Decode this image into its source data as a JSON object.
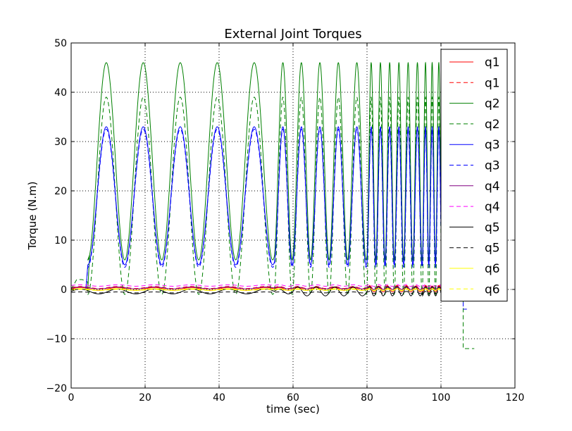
{
  "chart_data": {
    "type": "line",
    "title": "External Joint Torques",
    "xlabel": "time (sec)",
    "ylabel": "Torque (N.m)",
    "xlim": [
      0,
      120
    ],
    "ylim": [
      -20,
      50
    ],
    "xticks": [
      0,
      20,
      40,
      60,
      80,
      100,
      120
    ],
    "yticks": [
      -20,
      -10,
      0,
      10,
      20,
      30,
      40,
      50
    ],
    "xtick_labels": [
      "0",
      "20",
      "40",
      "60",
      "80",
      "100",
      "120"
    ],
    "ytick_labels": [
      "−20",
      "−10",
      "0",
      "10",
      "20",
      "30",
      "40",
      "50"
    ],
    "grid": true,
    "legend_position": "top-right",
    "series": [
      {
        "name": "q1",
        "color": "#ff0000",
        "style": "solid",
        "shape": "tiny_osc",
        "base": 0.1,
        "amp": 0.3,
        "burst_start": 80,
        "burst_amp": 0.6
      },
      {
        "name": "q1",
        "color": "#ff0000",
        "style": "dashed",
        "shape": "tiny_osc",
        "base": 0.4,
        "amp": 0.2,
        "burst_start": 80,
        "burst_amp": 0.4
      },
      {
        "name": "q2",
        "color": "#008000",
        "style": "solid",
        "shape": "osc",
        "start": 4.5,
        "peak": 46,
        "trough": 6,
        "end_x": 106,
        "early": [
          [
            0,
            0
          ],
          [
            4.5,
            0
          ],
          [
            5,
            7
          ]
        ]
      },
      {
        "name": "q2",
        "color": "#008000",
        "style": "dashed",
        "shape": "osc",
        "start": 4.5,
        "peak": 39,
        "trough": -1,
        "end_x": 106,
        "early": [
          [
            0,
            0
          ],
          [
            1.5,
            2
          ],
          [
            3,
            2
          ],
          [
            4.5,
            1.5
          ]
        ],
        "tail": [
          [
            106,
            -12
          ],
          [
            109,
            -12
          ]
        ]
      },
      {
        "name": "q3",
        "color": "#0000ff",
        "style": "solid",
        "shape": "osc",
        "start": 4.5,
        "peak": 33,
        "trough": 5,
        "end_x": 106,
        "early": [
          [
            0,
            0
          ],
          [
            4,
            0
          ],
          [
            4.5,
            5
          ]
        ]
      },
      {
        "name": "q3",
        "color": "#0000ff",
        "style": "dashed",
        "shape": "osc",
        "start": 4.5,
        "peak": 32.5,
        "trough": 4.5,
        "end_x": 106,
        "early": [
          [
            0,
            0
          ],
          [
            4,
            0
          ],
          [
            4.5,
            4.5
          ]
        ],
        "tail": [
          [
            106,
            -4
          ],
          [
            107,
            -4
          ]
        ]
      },
      {
        "name": "q4",
        "color": "#800080",
        "style": "solid",
        "shape": "tiny_osc",
        "base": 0.3,
        "amp": 0.2,
        "burst_start": 80,
        "burst_amp": 0.3
      },
      {
        "name": "q4",
        "color": "#ff00ff",
        "style": "dashed",
        "shape": "tiny_osc",
        "base": 0.8,
        "amp": 0.15,
        "burst_start": 80,
        "burst_amp": 0.2
      },
      {
        "name": "q5",
        "color": "#000000",
        "style": "solid",
        "shape": "tiny_osc",
        "base": -0.4,
        "amp": 0.5,
        "burst_start": 60,
        "burst_amp": 0.9
      },
      {
        "name": "q5",
        "color": "#000000",
        "style": "dashed",
        "shape": "tiny_osc",
        "base": -0.6,
        "amp": 0.1,
        "burst_start": 80,
        "burst_amp": 0.2
      },
      {
        "name": "q6",
        "color": "#ffff00",
        "style": "solid",
        "shape": "tiny_osc",
        "base": 0.0,
        "amp": 0.15,
        "burst_start": 80,
        "burst_amp": 0.2
      },
      {
        "name": "q6",
        "color": "#ffff00",
        "style": "dashed",
        "shape": "tiny_osc",
        "base": -0.1,
        "amp": 0.1,
        "burst_start": 80,
        "burst_amp": 0.15
      }
    ]
  }
}
